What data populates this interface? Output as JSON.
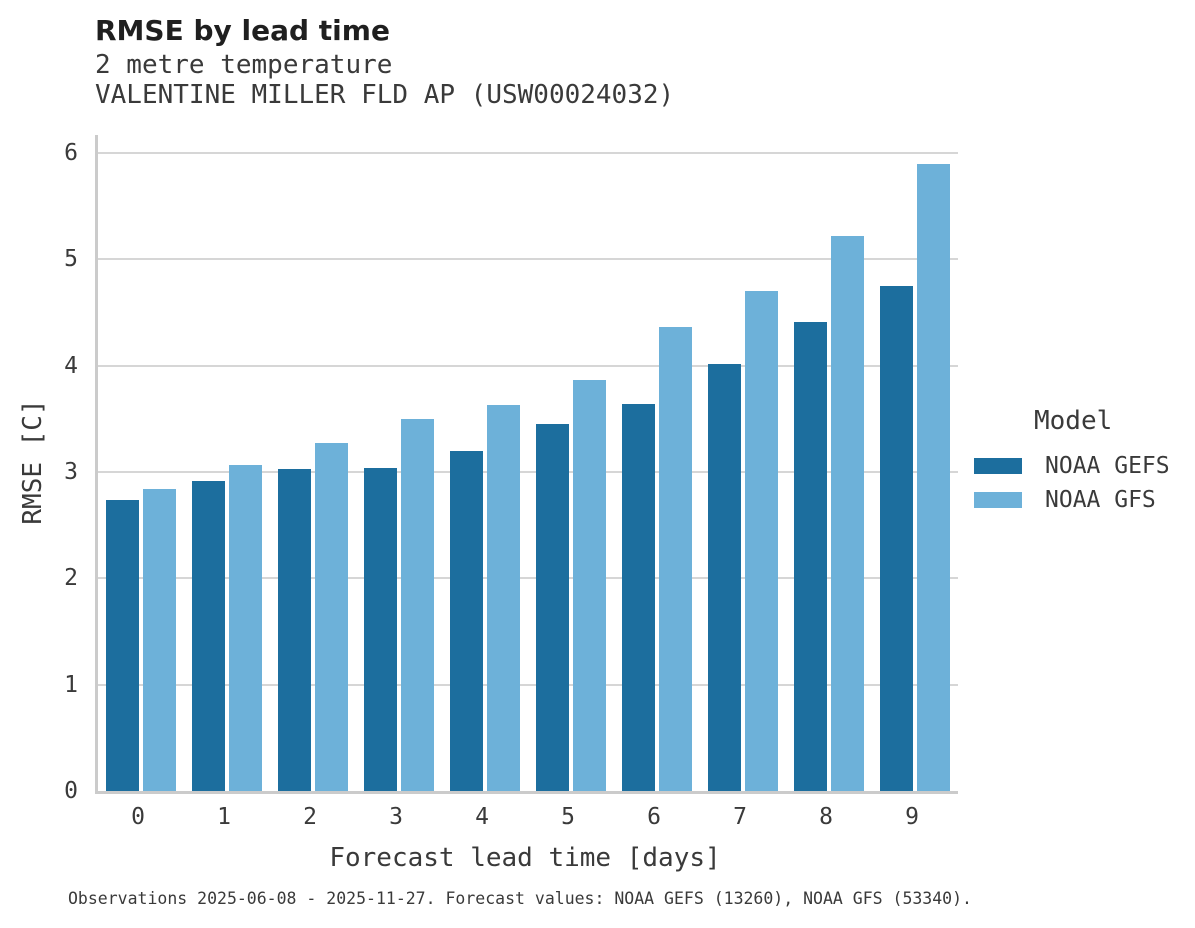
{
  "header": {
    "title": "RMSE by lead time",
    "subtitle_variable": "2 metre temperature",
    "subtitle_station": "VALENTINE MILLER FLD AP (USW00024032)"
  },
  "legend": {
    "title": "Model",
    "items": [
      {
        "label": "NOAA GEFS",
        "color": "#1c6e9e"
      },
      {
        "label": "NOAA GFS",
        "color": "#6db1d9"
      }
    ]
  },
  "footer": {
    "note": "Observations 2025-06-08 - 2025-11-27. Forecast values: NOAA GEFS (13260), NOAA GFS (53340)."
  },
  "chart_data": {
    "type": "bar",
    "title": "RMSE by lead time",
    "subtitle": [
      "2 metre temperature",
      "VALENTINE MILLER FLD AP (USW00024032)"
    ],
    "xlabel": "Forecast lead time [days]",
    "ylabel": "RMSE [C]",
    "categories": [
      "0",
      "1",
      "2",
      "3",
      "4",
      "5",
      "6",
      "7",
      "8",
      "9"
    ],
    "series": [
      {
        "name": "NOAA GEFS",
        "color": "#1c6e9e",
        "values": [
          2.74,
          2.92,
          3.03,
          3.04,
          3.2,
          3.45,
          3.64,
          4.02,
          4.41,
          4.75
        ]
      },
      {
        "name": "NOAA GFS",
        "color": "#6db1d9",
        "values": [
          2.84,
          3.07,
          3.27,
          3.5,
          3.63,
          3.87,
          4.36,
          4.7,
          5.22,
          5.9
        ]
      }
    ],
    "ylim": [
      0,
      6.17
    ],
    "yticks": [
      0,
      1,
      2,
      3,
      4,
      5,
      6
    ],
    "grid": true,
    "legend_title": "Model",
    "legend_position": "right",
    "annotation": "Observations 2025-06-08 - 2025-11-27. Forecast values: NOAA GEFS (13260), NOAA GFS (53340)."
  }
}
